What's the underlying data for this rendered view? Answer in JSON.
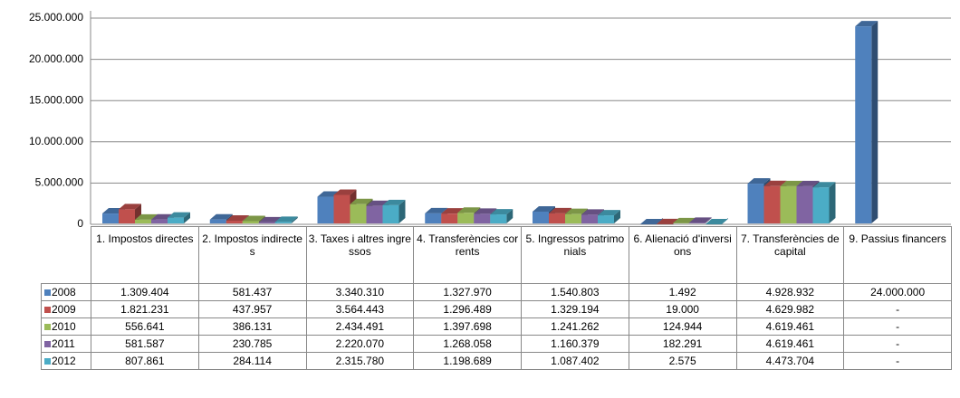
{
  "chart_data": {
    "type": "bar3d",
    "categories": [
      "1. Impostos directes",
      "2. Impostos indirectes",
      "3. Taxes i altres ingressos",
      "4. Transferències corrents",
      "5. Ingressos patrimonials",
      "6. Alienació d'inversions",
      "7. Transferències de capital",
      "9. Passius financers"
    ],
    "series": [
      {
        "name": "2008",
        "color": "#4f81bd",
        "values": [
          1309404,
          581437,
          3340310,
          1327970,
          1540803,
          1492,
          4928932,
          24000000
        ],
        "value_labels": [
          "1.309.404",
          "581.437",
          "3.340.310",
          "1.327.970",
          "1.540.803",
          "1.492",
          "4.928.932",
          "24.000.000"
        ]
      },
      {
        "name": "2009",
        "color": "#c0504d",
        "values": [
          1821231,
          437957,
          3564443,
          1296489,
          1329194,
          19000,
          4629982,
          null
        ],
        "value_labels": [
          "1.821.231",
          "437.957",
          "3.564.443",
          "1.296.489",
          "1.329.194",
          "19.000",
          "4.629.982",
          "-"
        ]
      },
      {
        "name": "2010",
        "color": "#9bbb59",
        "values": [
          556641,
          386131,
          2434491,
          1397698,
          1241262,
          124944,
          4619461,
          null
        ],
        "value_labels": [
          "556.641",
          "386.131",
          "2.434.491",
          "1.397.698",
          "1.241.262",
          "124.944",
          "4.619.461",
          "-"
        ]
      },
      {
        "name": "2011",
        "color": "#8064a2",
        "values": [
          581587,
          230785,
          2220070,
          1268058,
          1160379,
          182291,
          4619461,
          null
        ],
        "value_labels": [
          "581.587",
          "230.785",
          "2.220.070",
          "1.268.058",
          "1.160.379",
          "182.291",
          "4.619.461",
          "-"
        ]
      },
      {
        "name": "2012",
        "color": "#4bacc6",
        "values": [
          807861,
          284114,
          2315780,
          1198689,
          1087402,
          2575,
          4473704,
          null
        ],
        "value_labels": [
          "807.861",
          "284.114",
          "2.315.780",
          "1.198.689",
          "1.087.402",
          "2.575",
          "4.473.704",
          "-"
        ]
      }
    ],
    "ylim": [
      0,
      25000000
    ],
    "yticks": [
      0,
      {
        "value": 5000000,
        "label": "5.000.000"
      },
      {
        "value": 10000000,
        "label": "10.000.000"
      },
      {
        "value": 15000000,
        "label": "15.000.000"
      },
      {
        "value": 20000000,
        "label": "20.000.000"
      },
      {
        "value": 25000000,
        "label": "25.000.000"
      }
    ],
    "grid": true
  }
}
